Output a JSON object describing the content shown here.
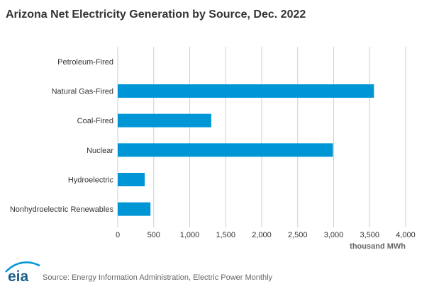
{
  "chart_data": {
    "type": "bar",
    "orientation": "horizontal",
    "title": "Arizona Net Electricity Generation by Source, Dec. 2022",
    "categories": [
      "Petroleum-Fired",
      "Natural Gas-Fired",
      "Coal-Fired",
      "Nuclear",
      "Hydroelectric",
      "Nonhydroelectric Renewables"
    ],
    "values": [
      1,
      3560,
      1300,
      2990,
      375,
      455
    ],
    "xlabel": "thousand MWh",
    "ylabel": "",
    "xlim": [
      0,
      4000
    ],
    "x_ticks": [
      "0",
      "500",
      "1,000",
      "1,500",
      "2,000",
      "2,500",
      "3,000",
      "3,500",
      "4,000"
    ],
    "grid": "vertical",
    "bar_color": "#0096d6"
  },
  "logo": {
    "text": "eia",
    "color": "#1f5f8b"
  },
  "source": "Source: Energy Information Administration, Electric Power Monthly"
}
